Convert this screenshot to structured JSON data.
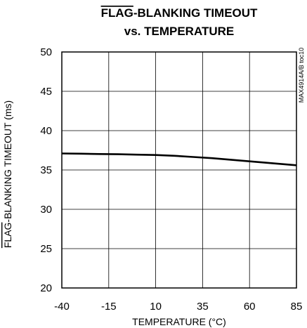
{
  "chart_data": {
    "type": "line",
    "title_overline": "FLAG",
    "title_line1_rest": "-BLANKING TIMEOUT",
    "title_line2": "vs. TEMPERATURE",
    "xlabel": "TEMPERATURE (°C)",
    "ylabel_overline": "FLAG",
    "ylabel_rest": "-BLANKING TIMEOUT (ms)",
    "figure_id": "MAX4914A/B toc10",
    "xlim": [
      -40,
      85
    ],
    "ylim": [
      20,
      50
    ],
    "xticks": [
      -40,
      -15,
      10,
      35,
      60,
      85
    ],
    "yticks": [
      20,
      25,
      30,
      35,
      40,
      45,
      50
    ],
    "grid": true,
    "series": [
      {
        "x": [
          -40,
          -30,
          -20,
          -10,
          0,
          10,
          20,
          30,
          40,
          50,
          60,
          70,
          80,
          85
        ],
        "y": [
          37.1,
          37.07,
          37.03,
          37.0,
          36.95,
          36.9,
          36.8,
          36.65,
          36.5,
          36.3,
          36.1,
          35.9,
          35.7,
          35.6
        ]
      }
    ]
  }
}
